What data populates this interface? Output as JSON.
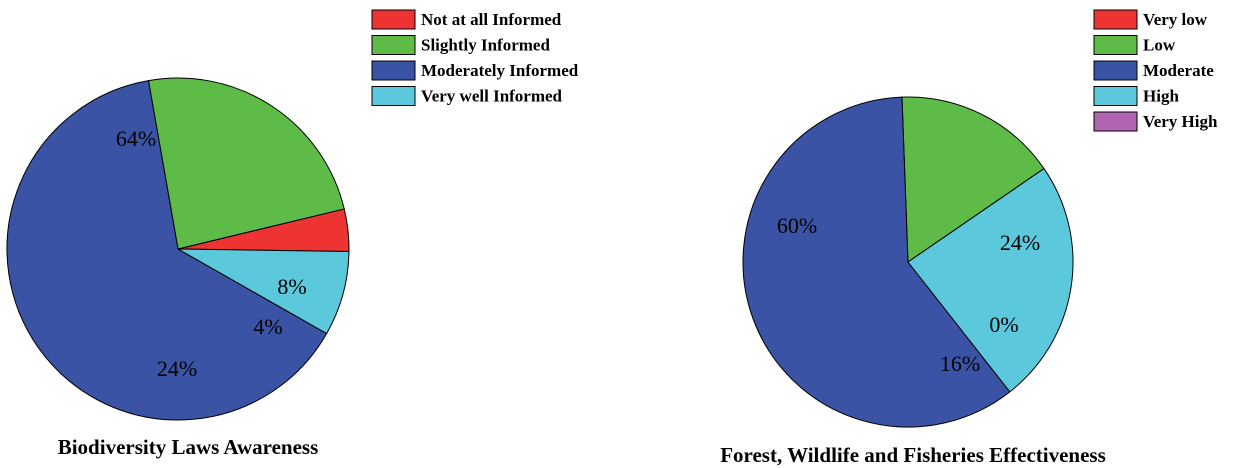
{
  "chart_data": [
    {
      "type": "pie",
      "title": "Biodiversity Laws Awareness",
      "legend_position": "top-right",
      "slices": [
        {
          "name": "Not at all Informed",
          "value": 4,
          "label": "4%",
          "color": "#ee3333"
        },
        {
          "name": "Slightly Informed",
          "value": 24,
          "label": "24%",
          "color": "#5fbb48"
        },
        {
          "name": "Moderately Informed",
          "value": 64,
          "label": "64%",
          "color": "#3a53a4"
        },
        {
          "name": "Very well Informed",
          "value": 8,
          "label": "8%",
          "color": "#5bc8db"
        }
      ]
    },
    {
      "type": "pie",
      "title": "Forest, Wildlife and Fisheries Effectiveness",
      "legend_position": "top-right",
      "slices": [
        {
          "name": "Very low",
          "value": 0,
          "label": "",
          "color": "#ee3333"
        },
        {
          "name": "Low",
          "value": 16,
          "label": "16%",
          "color": "#5fbb48"
        },
        {
          "name": "Moderate",
          "value": 60,
          "label": "60%",
          "color": "#3a53a4"
        },
        {
          "name": "High",
          "value": 24,
          "label": "24%",
          "color": "#5bc8db"
        },
        {
          "name": "Very High",
          "value": 0,
          "label": "0%",
          "color": "#b065b0"
        }
      ]
    }
  ]
}
